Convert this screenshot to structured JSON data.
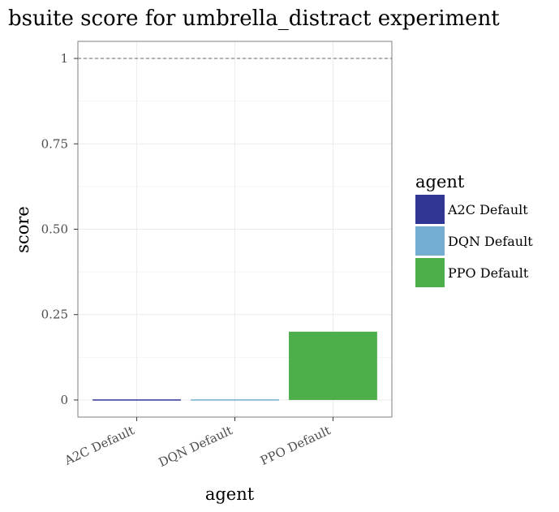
{
  "chart_data": {
    "type": "bar",
    "title": "bsuite score for umbrella_distract experiment",
    "xlabel": "agent",
    "ylabel": "score",
    "categories": [
      "A2C Default",
      "DQN Default",
      "PPO Default"
    ],
    "values": [
      0.0,
      0.0,
      0.2
    ],
    "colors": [
      "#313695",
      "#74add1",
      "#4daf4a"
    ],
    "ylim": [
      -0.05,
      1.05
    ],
    "yticks": [
      0,
      0.25,
      0.5,
      0.75,
      1
    ],
    "ytick_labels": [
      "0",
      "0.25",
      "0.50",
      "0.75",
      "1"
    ],
    "reference_line": 1,
    "grid": true,
    "legend": {
      "title": "agent",
      "position": "right",
      "entries": [
        "A2C Default",
        "DQN Default",
        "PPO Default"
      ]
    }
  }
}
